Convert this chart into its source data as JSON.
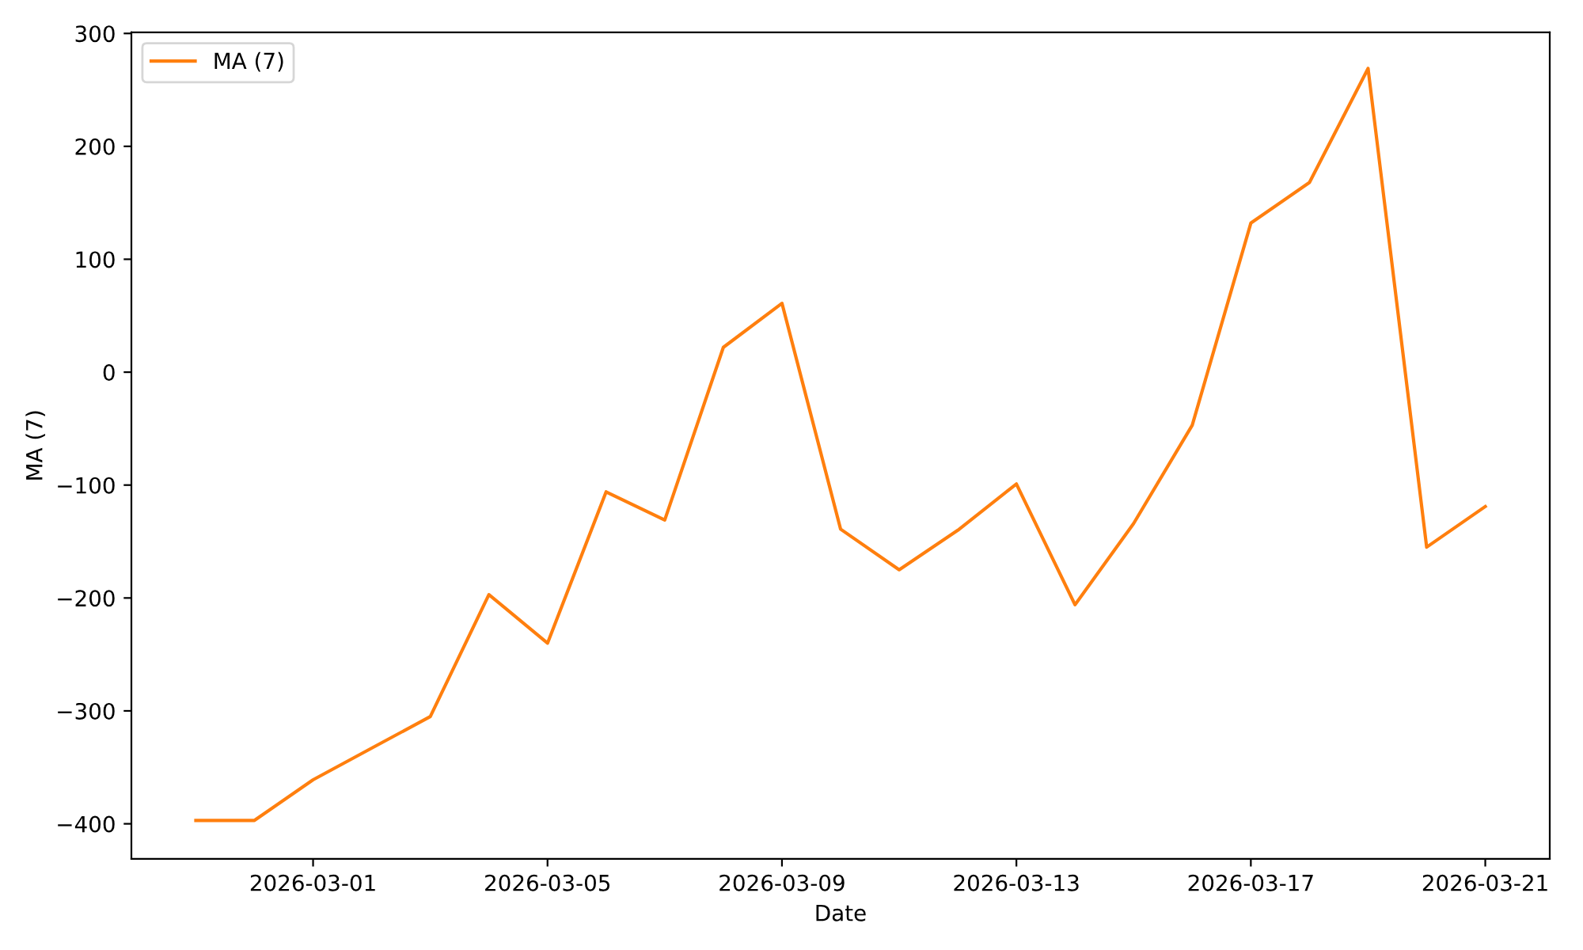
{
  "chart_data": {
    "type": "line",
    "xlabel": "Date",
    "ylabel": "MA (7)",
    "x": [
      "2026-02-27",
      "2026-02-28",
      "2026-03-01",
      "2026-03-02",
      "2026-03-03",
      "2026-03-04",
      "2026-03-05",
      "2026-03-06",
      "2026-03-07",
      "2026-03-08",
      "2026-03-09",
      "2026-03-10",
      "2026-03-11",
      "2026-03-12",
      "2026-03-13",
      "2026-03-14",
      "2026-03-15",
      "2026-03-16",
      "2026-03-17",
      "2026-03-18",
      "2026-03-19",
      "2026-03-20",
      "2026-03-21"
    ],
    "series": [
      {
        "name": "MA (7)",
        "color": "#ff7f0e",
        "values": [
          -397,
          -397,
          -361,
          -333,
          -305,
          -197,
          -240,
          -106,
          -131,
          22,
          61,
          -139,
          -175,
          -140,
          -99,
          -206,
          -134,
          -47,
          132,
          168,
          269,
          -155,
          -119
        ]
      }
    ],
    "xlim": [
      "2026-02-25T21:36",
      "2026-03-22T02:24"
    ],
    "xticks": [
      "2026-03-01",
      "2026-03-05",
      "2026-03-09",
      "2026-03-13",
      "2026-03-17",
      "2026-03-21"
    ],
    "ylim": [
      -431,
      301
    ],
    "yticks": [
      {
        "value": -400,
        "label": "−400"
      },
      {
        "value": -300,
        "label": "−300"
      },
      {
        "value": -200,
        "label": "−200"
      },
      {
        "value": -100,
        "label": "−100"
      },
      0,
      100,
      200,
      300
    ],
    "grid": false,
    "legend": "top left",
    "marker": "none",
    "line_style": "solid"
  }
}
